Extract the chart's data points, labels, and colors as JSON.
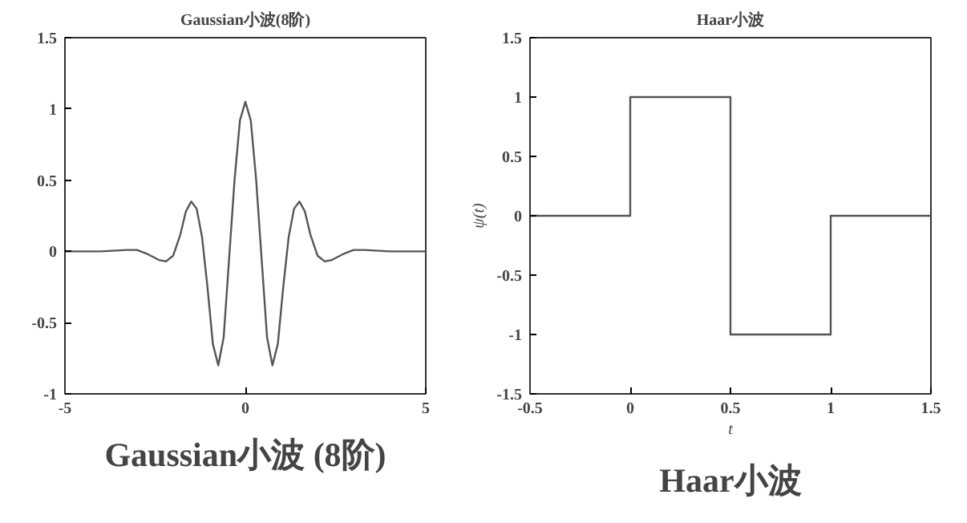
{
  "chart_data": [
    {
      "type": "line",
      "title": "Gaussian小波(8阶)",
      "annotations": [
        "Gaussian小波 (8阶)"
      ],
      "grid": false,
      "x": [
        -5,
        -4,
        -3.3,
        -3,
        -2.7,
        -2.4,
        -2.2,
        -2.0,
        -1.8,
        -1.65,
        -1.5,
        -1.35,
        -1.2,
        -1.05,
        -0.9,
        -0.75,
        -0.6,
        -0.45,
        -0.3,
        -0.15,
        0,
        0.15,
        0.3,
        0.45,
        0.6,
        0.75,
        0.9,
        1.05,
        1.2,
        1.35,
        1.5,
        1.65,
        1.8,
        2.0,
        2.2,
        2.4,
        2.7,
        3,
        3.3,
        4,
        5
      ],
      "series": [
        {
          "color": "#555555",
          "values": [
            0,
            0,
            0.01,
            0.01,
            -0.02,
            -0.06,
            -0.07,
            -0.03,
            0.12,
            0.28,
            0.35,
            0.3,
            0.1,
            -0.25,
            -0.65,
            -0.8,
            -0.6,
            -0.05,
            0.5,
            0.92,
            1.05,
            0.92,
            0.5,
            -0.05,
            -0.6,
            -0.8,
            -0.65,
            -0.25,
            0.1,
            0.3,
            0.35,
            0.28,
            0.12,
            -0.03,
            -0.07,
            -0.06,
            -0.02,
            0.01,
            0.01,
            0,
            0
          ]
        }
      ],
      "xlim": [
        -5,
        5
      ],
      "xticks": [
        -5,
        0,
        5
      ],
      "ylim": [
        -1,
        1.5
      ],
      "yticks": [
        -1,
        -0.5,
        0,
        0.5,
        1,
        1.5
      ]
    },
    {
      "type": "step",
      "title": "Haar小波",
      "xlabel": "t",
      "ylabel": "ψ(t)",
      "annotations": [
        "Haar小波"
      ],
      "grid": false,
      "x": [
        -0.5,
        0,
        0.5,
        1,
        1.5
      ],
      "series": [
        {
          "color": "#555555",
          "values": [
            0,
            1,
            -1,
            0,
            0
          ]
        }
      ],
      "xlim": [
        -0.5,
        1.5
      ],
      "xticks": [
        -0.5,
        0,
        0.5,
        1,
        1.5
      ],
      "ylim": [
        -1.5,
        1.5
      ],
      "yticks": [
        -1.5,
        -1,
        -0.5,
        0,
        0.5,
        1,
        1.5
      ]
    }
  ]
}
